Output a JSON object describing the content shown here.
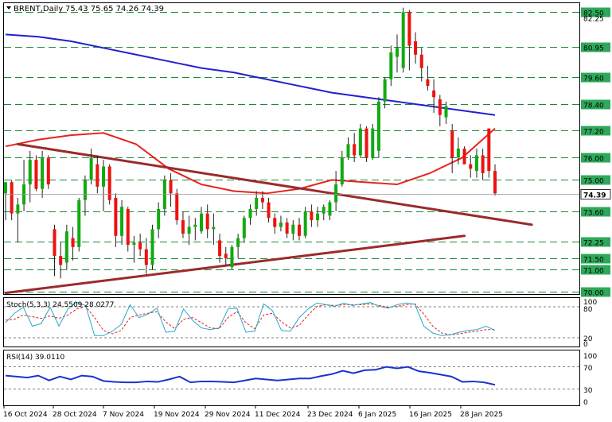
{
  "header": {
    "symbol": "BRENT,Daily",
    "ohlc": "75.43 75.65 74.26 74.39"
  },
  "colors": {
    "bull": "#11aa11",
    "bear": "#ee1111",
    "ma_fast": "#e8231f",
    "ma_slow": "#2222cc",
    "trendline": "#9b2b2b",
    "grid": "#1a8a3a",
    "stoch_main": "#2aa8c8",
    "stoch_signal": "#dd2222",
    "rsi": "#1a33cc",
    "price_tag_bg": "#2ea85a"
  },
  "price_levels": [
    "82.50",
    "80.95",
    "79.60",
    "78.40",
    "77.20",
    "76.00",
    "75.00",
    "73.60",
    "72.25",
    "71.50",
    "71.00",
    "70.00"
  ],
  "extra_axis_labels": [
    "82.25"
  ],
  "current_price": "74.39",
  "stoch": {
    "label": "Stoch(5,3,3) 24.5509 28.0277",
    "levels": [
      "100",
      "80",
      "20",
      "0"
    ]
  },
  "rsi": {
    "label": "RSI(14) 39.0110",
    "levels": [
      "100",
      "70",
      "30",
      "0"
    ]
  },
  "x_axis": [
    "16 Oct 2024",
    "28 Oct 2024",
    "7 Nov 2024",
    "19 Nov 2024",
    "29 Nov 2024",
    "11 Dec 2024",
    "23 Dec 2024",
    "6 Jan 2025",
    "16 Jan 2025",
    "28 Jan 2025"
  ],
  "chart_data": {
    "type": "candlestick",
    "title": "BRENT,Daily",
    "ylim": [
      69.9,
      82.9
    ],
    "candles": [
      {
        "o": 74.4,
        "h": 74.9,
        "l": 73.2,
        "c": 74.9
      },
      {
        "o": 74.9,
        "h": 75.0,
        "l": 73.2,
        "c": 73.5
      },
      {
        "o": 73.5,
        "h": 74.2,
        "l": 72.2,
        "c": 73.9
      },
      {
        "o": 73.9,
        "h": 75.9,
        "l": 73.6,
        "c": 74.8
      },
      {
        "o": 74.8,
        "h": 76.3,
        "l": 74.0,
        "c": 75.9
      },
      {
        "o": 75.9,
        "h": 76.1,
        "l": 74.5,
        "c": 74.6
      },
      {
        "o": 74.6,
        "h": 76.3,
        "l": 74.2,
        "c": 76.0
      },
      {
        "o": 76.0,
        "h": 76.1,
        "l": 74.6,
        "c": 74.8
      },
      {
        "o": 72.8,
        "h": 73.0,
        "l": 70.7,
        "c": 71.6
      },
      {
        "o": 71.6,
        "h": 72.2,
        "l": 70.6,
        "c": 71.2
      },
      {
        "o": 71.3,
        "h": 73.0,
        "l": 71.0,
        "c": 72.7
      },
      {
        "o": 72.4,
        "h": 72.9,
        "l": 71.4,
        "c": 72.0
      },
      {
        "o": 72.0,
        "h": 74.2,
        "l": 71.8,
        "c": 74.1
      },
      {
        "o": 74.1,
        "h": 75.2,
        "l": 73.4,
        "c": 75.0
      },
      {
        "o": 75.0,
        "h": 76.4,
        "l": 74.8,
        "c": 76.0
      },
      {
        "o": 75.7,
        "h": 76.1,
        "l": 74.4,
        "c": 74.7
      },
      {
        "o": 74.7,
        "h": 75.9,
        "l": 73.6,
        "c": 75.6
      },
      {
        "o": 75.6,
        "h": 75.7,
        "l": 73.9,
        "c": 74.1
      },
      {
        "o": 74.2,
        "h": 74.4,
        "l": 72.0,
        "c": 72.5
      },
      {
        "o": 72.5,
        "h": 74.1,
        "l": 72.1,
        "c": 73.8
      },
      {
        "o": 73.7,
        "h": 73.8,
        "l": 71.8,
        "c": 72.1
      },
      {
        "o": 72.1,
        "h": 72.5,
        "l": 71.3,
        "c": 72.2
      },
      {
        "o": 72.2,
        "h": 72.6,
        "l": 71.6,
        "c": 71.9
      },
      {
        "o": 71.9,
        "h": 72.4,
        "l": 70.8,
        "c": 71.2
      },
      {
        "o": 71.2,
        "h": 73.0,
        "l": 71.0,
        "c": 72.8
      },
      {
        "o": 72.8,
        "h": 74.0,
        "l": 72.4,
        "c": 73.7
      },
      {
        "o": 73.7,
        "h": 75.2,
        "l": 73.4,
        "c": 75.0
      },
      {
        "o": 75.0,
        "h": 75.3,
        "l": 73.8,
        "c": 74.4
      },
      {
        "o": 74.4,
        "h": 74.6,
        "l": 73.0,
        "c": 73.2
      },
      {
        "o": 73.2,
        "h": 73.6,
        "l": 72.4,
        "c": 72.6
      },
      {
        "o": 72.6,
        "h": 73.4,
        "l": 72.1,
        "c": 72.9
      },
      {
        "o": 72.9,
        "h": 73.3,
        "l": 72.3,
        "c": 73.0
      },
      {
        "o": 72.7,
        "h": 73.8,
        "l": 72.6,
        "c": 73.5
      },
      {
        "o": 73.5,
        "h": 73.9,
        "l": 72.4,
        "c": 72.8
      },
      {
        "o": 72.8,
        "h": 73.5,
        "l": 72.1,
        "c": 72.9
      },
      {
        "o": 72.3,
        "h": 72.6,
        "l": 71.3,
        "c": 71.6
      },
      {
        "o": 71.7,
        "h": 72.0,
        "l": 71.2,
        "c": 71.5
      },
      {
        "o": 71.1,
        "h": 72.1,
        "l": 71.0,
        "c": 72.0
      },
      {
        "o": 72.0,
        "h": 72.6,
        "l": 71.5,
        "c": 72.4
      },
      {
        "o": 72.4,
        "h": 73.4,
        "l": 72.2,
        "c": 73.3
      },
      {
        "o": 73.3,
        "h": 73.9,
        "l": 73.0,
        "c": 73.7
      },
      {
        "o": 73.7,
        "h": 74.5,
        "l": 73.4,
        "c": 74.2
      },
      {
        "o": 74.2,
        "h": 74.5,
        "l": 73.7,
        "c": 74.0
      },
      {
        "o": 74.0,
        "h": 74.2,
        "l": 73.1,
        "c": 73.3
      },
      {
        "o": 73.3,
        "h": 73.5,
        "l": 72.6,
        "c": 72.9
      },
      {
        "o": 72.9,
        "h": 73.4,
        "l": 72.7,
        "c": 73.1
      },
      {
        "o": 73.1,
        "h": 73.3,
        "l": 72.4,
        "c": 72.6
      },
      {
        "o": 72.6,
        "h": 73.2,
        "l": 72.3,
        "c": 73.0
      },
      {
        "o": 73.0,
        "h": 73.3,
        "l": 72.3,
        "c": 72.5
      },
      {
        "o": 72.5,
        "h": 73.8,
        "l": 72.4,
        "c": 73.6
      },
      {
        "o": 73.6,
        "h": 73.9,
        "l": 72.9,
        "c": 73.2
      },
      {
        "o": 73.2,
        "h": 73.8,
        "l": 72.9,
        "c": 73.5
      },
      {
        "o": 73.5,
        "h": 73.9,
        "l": 73.2,
        "c": 73.8
      },
      {
        "o": 73.4,
        "h": 74.1,
        "l": 73.2,
        "c": 74.0
      },
      {
        "o": 74.0,
        "h": 75.4,
        "l": 73.6,
        "c": 74.8
      },
      {
        "o": 74.8,
        "h": 76.3,
        "l": 74.7,
        "c": 76.0
      },
      {
        "o": 76.0,
        "h": 76.9,
        "l": 75.9,
        "c": 76.6
      },
      {
        "o": 76.6,
        "h": 77.1,
        "l": 75.8,
        "c": 76.1
      },
      {
        "o": 76.1,
        "h": 77.5,
        "l": 76.0,
        "c": 77.3
      },
      {
        "o": 77.3,
        "h": 77.4,
        "l": 75.8,
        "c": 76.0
      },
      {
        "o": 76.0,
        "h": 77.5,
        "l": 75.9,
        "c": 77.3
      },
      {
        "o": 76.3,
        "h": 78.7,
        "l": 76.0,
        "c": 78.5
      },
      {
        "o": 78.5,
        "h": 79.6,
        "l": 78.2,
        "c": 79.5
      },
      {
        "o": 79.5,
        "h": 81.0,
        "l": 79.2,
        "c": 80.7
      },
      {
        "o": 80.5,
        "h": 81.5,
        "l": 79.8,
        "c": 80.9
      },
      {
        "o": 80.0,
        "h": 82.7,
        "l": 79.8,
        "c": 82.5
      },
      {
        "o": 82.5,
        "h": 82.6,
        "l": 79.9,
        "c": 81.0
      },
      {
        "o": 81.2,
        "h": 81.6,
        "l": 80.2,
        "c": 80.6
      },
      {
        "o": 80.6,
        "h": 80.9,
        "l": 79.4,
        "c": 80.0
      },
      {
        "o": 79.5,
        "h": 80.1,
        "l": 79.0,
        "c": 79.2
      },
      {
        "o": 79.0,
        "h": 79.5,
        "l": 78.0,
        "c": 78.7
      },
      {
        "o": 78.6,
        "h": 78.8,
        "l": 77.4,
        "c": 77.9
      },
      {
        "o": 77.8,
        "h": 78.5,
        "l": 77.5,
        "c": 78.3
      },
      {
        "o": 77.2,
        "h": 77.5,
        "l": 75.3,
        "c": 76.0
      },
      {
        "o": 76.0,
        "h": 76.9,
        "l": 75.7,
        "c": 76.4
      },
      {
        "o": 76.4,
        "h": 76.5,
        "l": 75.7,
        "c": 75.7
      },
      {
        "o": 75.7,
        "h": 76.1,
        "l": 75.1,
        "c": 75.5
      },
      {
        "o": 75.4,
        "h": 76.4,
        "l": 75.1,
        "c": 76.1
      },
      {
        "o": 76.1,
        "h": 76.4,
        "l": 75.0,
        "c": 75.3
      },
      {
        "o": 77.3,
        "h": 77.3,
        "l": 75.1,
        "c": 75.4
      },
      {
        "o": 75.4,
        "h": 75.7,
        "l": 74.3,
        "c": 74.4
      }
    ],
    "ma_fast": [
      76.5,
      76.8,
      77.0,
      77.1,
      76.6,
      75.5,
      74.8,
      74.5,
      74.4,
      74.6,
      75.0,
      74.9,
      74.8,
      75.3,
      76.0,
      77.3
    ],
    "ma_slow": [
      81.5,
      81.4,
      81.2,
      80.9,
      80.6,
      80.3,
      80.0,
      79.8,
      79.5,
      79.2,
      78.9,
      78.7,
      78.5,
      78.3,
      78.1,
      77.9
    ],
    "stoch_main": [
      48,
      70,
      84,
      40,
      46,
      84,
      40,
      80,
      96,
      88,
      18,
      18,
      28,
      44,
      90,
      60,
      68,
      82,
      26,
      28,
      80,
      54,
      36,
      32,
      36,
      80,
      82,
      26,
      28,
      92,
      76,
      30,
      28,
      60,
      80,
      94,
      90,
      86,
      94,
      88,
      92,
      95,
      86,
      82,
      90,
      94,
      91,
      40,
      24,
      18,
      20,
      26,
      30,
      32,
      40,
      30
    ],
    "stoch_signal": [
      54,
      56,
      66,
      62,
      58,
      64,
      58,
      66,
      80,
      86,
      60,
      30,
      22,
      30,
      60,
      66,
      70,
      74,
      50,
      34,
      56,
      60,
      48,
      36,
      34,
      60,
      74,
      48,
      34,
      66,
      70,
      50,
      36,
      42,
      66,
      86,
      90,
      88,
      90,
      90,
      90,
      92,
      88,
      84,
      86,
      90,
      92,
      68,
      40,
      24,
      20,
      22,
      26,
      28,
      32,
      32
    ],
    "rsi_values": [
      58,
      56,
      54,
      58,
      48,
      56,
      50,
      58,
      56,
      47,
      45,
      44,
      44,
      46,
      45,
      50,
      56,
      44,
      46,
      46,
      45,
      44,
      48,
      52,
      50,
      48,
      50,
      52,
      52,
      57,
      61,
      68,
      63,
      69,
      70,
      76,
      73,
      76,
      67,
      64,
      60,
      56,
      45,
      46,
      44,
      39
    ],
    "trendlines": [
      {
        "from": [
          2,
          76.6
        ],
        "to": [
          86,
          73.0
        ]
      },
      {
        "from": [
          0,
          69.95
        ],
        "to": [
          75,
          72.5
        ]
      }
    ]
  }
}
